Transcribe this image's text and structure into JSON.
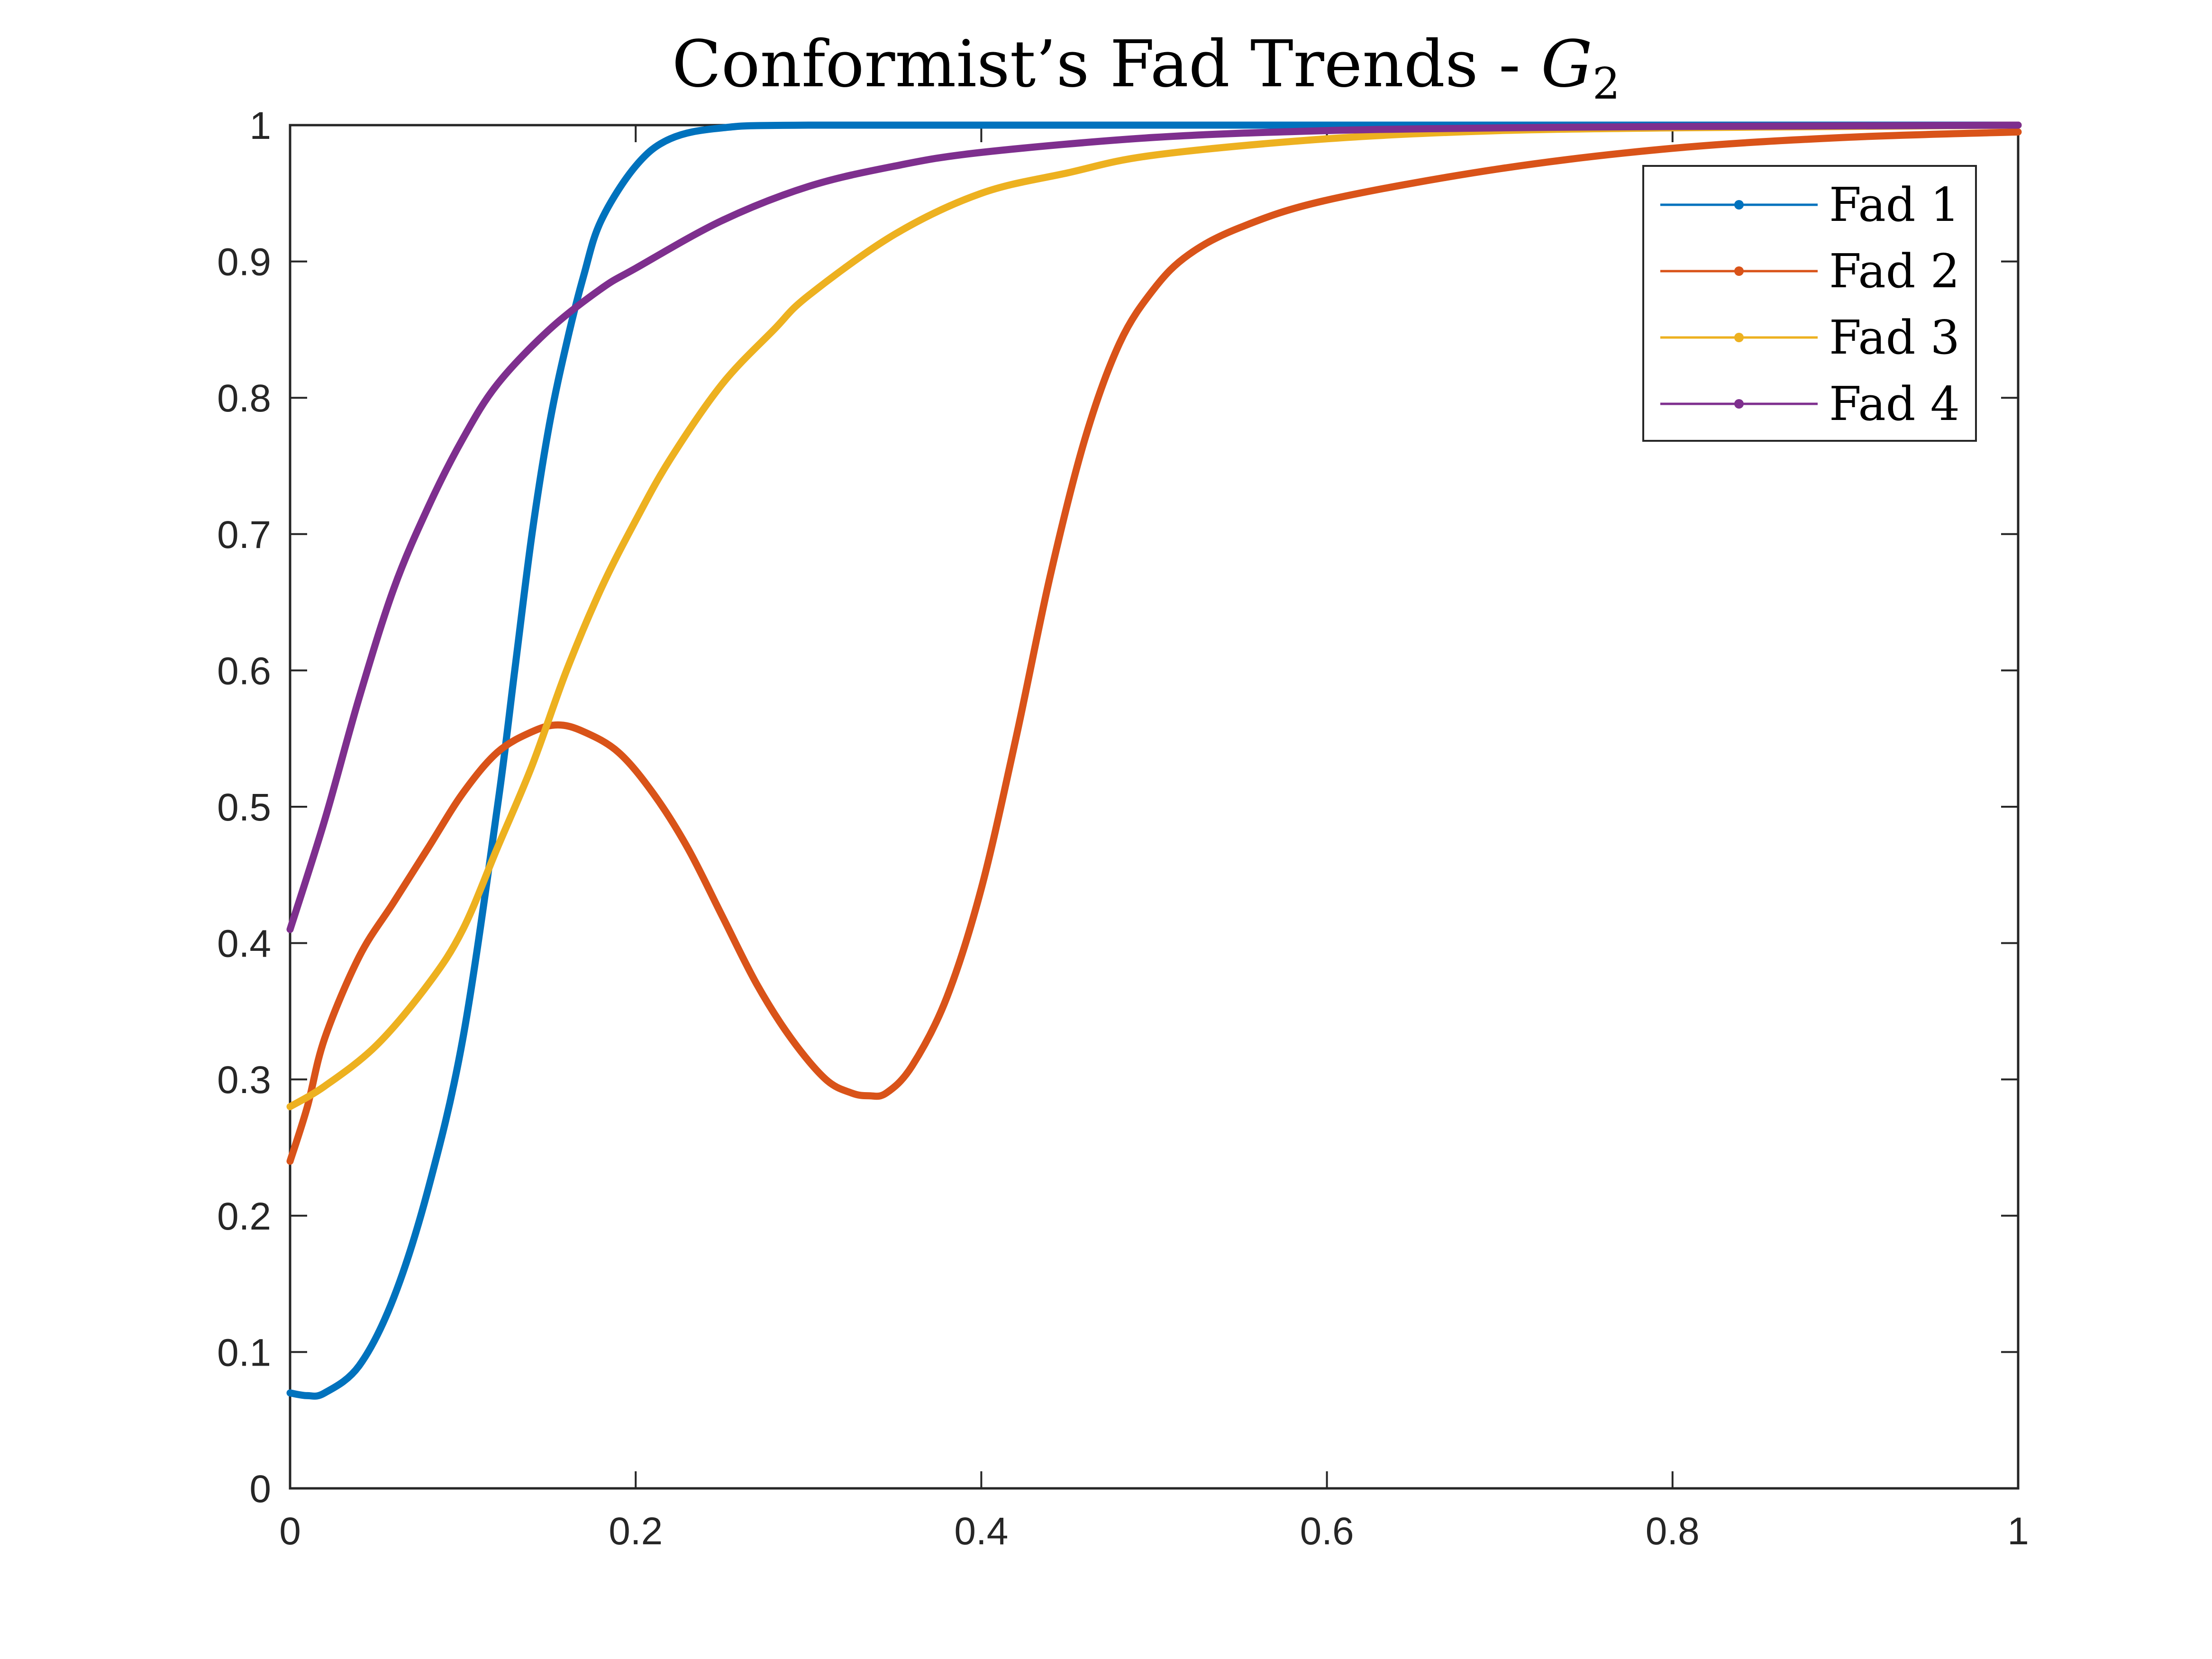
{
  "chart_data": {
    "type": "line",
    "title": "Conformist’s Fad Trends - ",
    "title_math": "G",
    "title_math_sub": "2",
    "xlabel": "",
    "ylabel": "",
    "xlim": [
      0,
      1
    ],
    "ylim": [
      0,
      1
    ],
    "xticks": [
      "0",
      "0.2",
      "0.4",
      "0.6",
      "0.8",
      "1"
    ],
    "yticks": [
      "0",
      "0.1",
      "0.2",
      "0.3",
      "0.4",
      "0.5",
      "0.6",
      "0.7",
      "0.8",
      "0.9",
      "1"
    ],
    "grid": false,
    "legend_position": "top-right",
    "series": [
      {
        "name": "Fad 1",
        "color": "#0072BD",
        "points": [
          [
            0,
            0.07
          ],
          [
            0.01,
            0.068
          ],
          [
            0.02,
            0.07
          ],
          [
            0.04,
            0.09
          ],
          [
            0.06,
            0.14
          ],
          [
            0.08,
            0.22
          ],
          [
            0.1,
            0.33
          ],
          [
            0.12,
            0.5
          ],
          [
            0.13,
            0.6
          ],
          [
            0.14,
            0.7
          ],
          [
            0.15,
            0.78
          ],
          [
            0.16,
            0.84
          ],
          [
            0.17,
            0.89
          ],
          [
            0.18,
            0.93
          ],
          [
            0.2,
            0.97
          ],
          [
            0.22,
            0.99
          ],
          [
            0.25,
            0.998
          ],
          [
            0.3,
            1.0
          ],
          [
            0.5,
            1.0
          ],
          [
            0.8,
            1.0
          ],
          [
            1.0,
            1.0
          ]
        ]
      },
      {
        "name": "Fad 2",
        "color": "#D95319",
        "points": [
          [
            0,
            0.24
          ],
          [
            0.01,
            0.28
          ],
          [
            0.02,
            0.33
          ],
          [
            0.04,
            0.39
          ],
          [
            0.06,
            0.43
          ],
          [
            0.08,
            0.47
          ],
          [
            0.1,
            0.51
          ],
          [
            0.12,
            0.54
          ],
          [
            0.14,
            0.555
          ],
          [
            0.155,
            0.56
          ],
          [
            0.17,
            0.555
          ],
          [
            0.19,
            0.54
          ],
          [
            0.21,
            0.51
          ],
          [
            0.23,
            0.47
          ],
          [
            0.25,
            0.42
          ],
          [
            0.27,
            0.37
          ],
          [
            0.29,
            0.33
          ],
          [
            0.31,
            0.3
          ],
          [
            0.325,
            0.29
          ],
          [
            0.335,
            0.288
          ],
          [
            0.345,
            0.29
          ],
          [
            0.36,
            0.31
          ],
          [
            0.38,
            0.36
          ],
          [
            0.4,
            0.44
          ],
          [
            0.42,
            0.55
          ],
          [
            0.44,
            0.67
          ],
          [
            0.46,
            0.77
          ],
          [
            0.48,
            0.84
          ],
          [
            0.5,
            0.88
          ],
          [
            0.52,
            0.905
          ],
          [
            0.55,
            0.925
          ],
          [
            0.6,
            0.945
          ],
          [
            0.7,
            0.968
          ],
          [
            0.8,
            0.983
          ],
          [
            0.9,
            0.991
          ],
          [
            1.0,
            0.995
          ]
        ]
      },
      {
        "name": "Fad 3",
        "color": "#EDB120",
        "points": [
          [
            0,
            0.28
          ],
          [
            0.02,
            0.295
          ],
          [
            0.05,
            0.325
          ],
          [
            0.08,
            0.37
          ],
          [
            0.1,
            0.41
          ],
          [
            0.12,
            0.47
          ],
          [
            0.14,
            0.53
          ],
          [
            0.16,
            0.6
          ],
          [
            0.18,
            0.66
          ],
          [
            0.2,
            0.71
          ],
          [
            0.22,
            0.755
          ],
          [
            0.25,
            0.81
          ],
          [
            0.28,
            0.85
          ],
          [
            0.3,
            0.875
          ],
          [
            0.35,
            0.92
          ],
          [
            0.4,
            0.95
          ],
          [
            0.45,
            0.965
          ],
          [
            0.5,
            0.978
          ],
          [
            0.6,
            0.99
          ],
          [
            0.7,
            0.996
          ],
          [
            0.8,
            0.998
          ],
          [
            0.9,
            0.999
          ],
          [
            1.0,
            1.0
          ]
        ]
      },
      {
        "name": "Fad 4",
        "color": "#7E2F8E",
        "points": [
          [
            0,
            0.41
          ],
          [
            0.02,
            0.49
          ],
          [
            0.04,
            0.58
          ],
          [
            0.06,
            0.66
          ],
          [
            0.08,
            0.72
          ],
          [
            0.1,
            0.77
          ],
          [
            0.12,
            0.81
          ],
          [
            0.15,
            0.85
          ],
          [
            0.18,
            0.88
          ],
          [
            0.2,
            0.895
          ],
          [
            0.25,
            0.93
          ],
          [
            0.3,
            0.955
          ],
          [
            0.35,
            0.97
          ],
          [
            0.4,
            0.98
          ],
          [
            0.5,
            0.991
          ],
          [
            0.6,
            0.996
          ],
          [
            0.7,
            0.998
          ],
          [
            0.8,
            0.999
          ],
          [
            1.0,
            1.0
          ]
        ]
      }
    ]
  }
}
